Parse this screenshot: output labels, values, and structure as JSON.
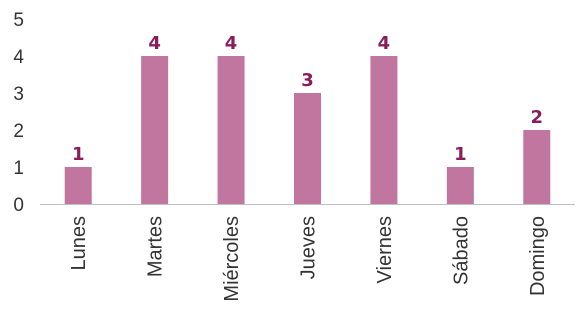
{
  "chart_data": {
    "type": "bar",
    "categories": [
      "Lunes",
      "Martes",
      "Miércoles",
      "Jueves",
      "Viernes",
      "Sábado",
      "Domingo"
    ],
    "values": [
      1,
      4,
      4,
      3,
      4,
      1,
      2
    ],
    "data_labels": [
      "1",
      "4",
      "4",
      "3",
      "4",
      "1",
      "2"
    ],
    "title": "",
    "xlabel": "",
    "ylabel": "",
    "ylim": [
      0,
      5
    ],
    "yticks": [
      "0",
      "1",
      "2",
      "3",
      "4",
      "5"
    ],
    "grid": false,
    "legend": "none",
    "colors": {
      "bar": "#c0769f",
      "data_label": "#8a1c5c",
      "axis": "#bfbfbf"
    }
  }
}
